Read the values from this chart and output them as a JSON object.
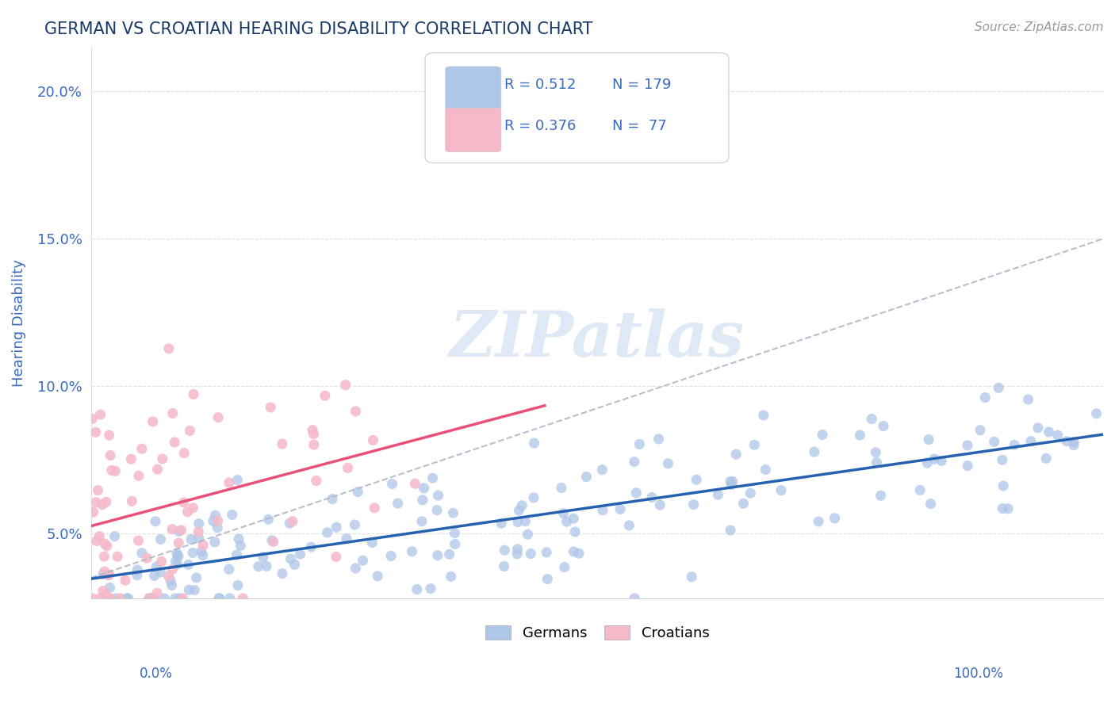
{
  "title": "GERMAN VS CROATIAN HEARING DISABILITY CORRELATION CHART",
  "source": "Source: ZipAtlas.com",
  "ylabel": "Hearing Disability",
  "xlim": [
    0,
    100
  ],
  "ylim": [
    2.8,
    21.5
  ],
  "yticks": [
    5.0,
    10.0,
    15.0,
    20.0
  ],
  "ytick_labels": [
    "5.0%",
    "10.0%",
    "15.0%",
    "20.0%"
  ],
  "german_color": "#aec6e8",
  "german_edge_color": "#aec6e8",
  "german_line_color": "#2563b0",
  "croatian_color": "#f5b8c8",
  "croatian_edge_color": "#f5b8c8",
  "croatian_line_color": "#e8507a",
  "gray_dash_color": "#b0b8c8",
  "legend_R_german": "R = 0.512",
  "legend_N_german": "N = 179",
  "legend_R_croatian": "R = 0.376",
  "legend_N_croatian": "N =  77",
  "background_color": "#ffffff",
  "watermark_text": "ZIPatlas",
  "title_color": "#1a3a6a",
  "axis_label_color": "#3a6bbf",
  "legend_label_german": "Germans",
  "legend_label_croatian": "Croatians",
  "grid_color": "#cccccc",
  "source_color": "#999999"
}
